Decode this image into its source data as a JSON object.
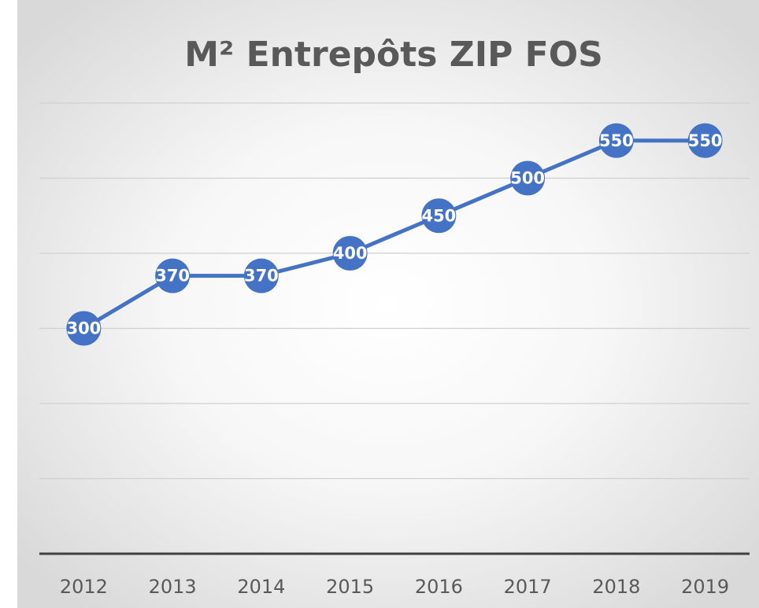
{
  "chart_data": {
    "type": "line",
    "title": "M² Entrepôts ZIP FOS",
    "categories": [
      "2012",
      "2013",
      "2014",
      "2015",
      "2016",
      "2017",
      "2018",
      "2019"
    ],
    "series": [
      {
        "name": "M²",
        "color": "#4472c4",
        "values": [
          300,
          370,
          370,
          400,
          450,
          500,
          550,
          550
        ]
      }
    ],
    "ylim": [
      0,
      600
    ],
    "yticks": [
      0,
      100,
      200,
      300,
      400,
      500,
      600
    ],
    "grid": true
  }
}
